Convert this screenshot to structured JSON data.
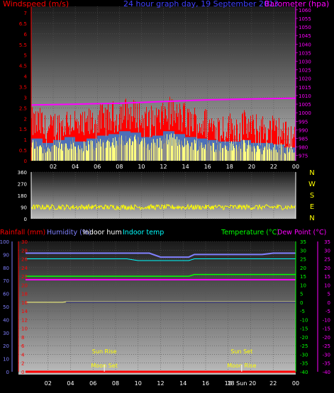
{
  "chart_data": [
    {
      "type": "line",
      "title": "24 hour graph day, 19 September 2013",
      "left_axis_label": "Windspeed (m/s)",
      "right_axis_label": "Barometer (hpa)",
      "x_ticks": [
        "02",
        "04",
        "06",
        "08",
        "10",
        "12",
        "14",
        "16",
        "18",
        "20",
        "22",
        "00"
      ],
      "left_ticks": [
        "0",
        "0.5",
        "1",
        "1.5",
        "2",
        "2.5",
        "3",
        "3.5",
        "4",
        "4.5",
        "5",
        "5.5",
        "6",
        "6.5",
        "7"
      ],
      "right_ticks": [
        "975",
        "980",
        "985",
        "990",
        "995",
        "1000",
        "1005",
        "1010",
        "1015",
        "1020",
        "1025",
        "1030",
        "1035",
        "1040",
        "1045",
        "1050",
        "1055",
        "1060"
      ],
      "ylim_left": [
        0,
        7
      ],
      "ylim_right": [
        972,
        1062
      ],
      "series": [
        {
          "name": "Windspeed",
          "color": "#ff0000",
          "description_values": [
            1.5,
            1.2,
            1.4,
            1.6,
            1.3,
            1.5,
            1.7,
            1.8,
            2.0,
            1.9,
            1.6,
            1.7,
            2.0,
            1.8,
            1.6,
            1.5,
            1.4,
            1.3,
            1.3,
            1.4,
            1.2,
            1.2,
            1.1,
            0.9
          ]
        },
        {
          "name": "Barometer",
          "color": "#ff00ff",
          "x": [
            0,
            4,
            8,
            12,
            16,
            20,
            24
          ],
          "values": [
            1004.5,
            1005,
            1005.5,
            1006.5,
            1007.5,
            1008,
            1008.5
          ]
        }
      ],
      "grid": true
    },
    {
      "type": "line",
      "left_ticks": [
        "0",
        "90",
        "180",
        "270",
        "360"
      ],
      "compass_labels": [
        "N",
        "W",
        "S",
        "E",
        "N"
      ],
      "ylim": [
        0,
        360
      ],
      "series": [
        {
          "name": "Wind direction",
          "color": "#ffff00",
          "mean": 90
        }
      ],
      "grid": true
    },
    {
      "type": "line",
      "legend": [
        "Rainfall (mm)",
        "Humidity (%)",
        "Indoor hum",
        "Indoor temp",
        "Temperature (°C)",
        "Dew Point (°C)"
      ],
      "rain_ticks": [
        "0",
        "10",
        "20",
        "30",
        "40",
        "50",
        "60",
        "70",
        "80",
        "90",
        "100"
      ],
      "hum_ticks": [
        "0",
        "2",
        "4",
        "6",
        "8",
        "10",
        "12",
        "14",
        "16",
        "18",
        "20",
        "22",
        "24",
        "26",
        "28",
        "30"
      ],
      "temp_ticks": [
        "-40",
        "-35",
        "-30",
        "-25",
        "-20",
        "-15",
        "-10",
        "-5",
        "0",
        "5",
        "10",
        "15",
        "20",
        "25",
        "30",
        "35"
      ],
      "x_ticks": [
        "02",
        "04",
        "06",
        "08",
        "10",
        "12",
        "14",
        "16",
        "18",
        "20",
        "22",
        "00"
      ],
      "annotations": [
        {
          "text": "Sun Rise",
          "hour": 7.0
        },
        {
          "text": "Moon Set",
          "hour": 7.0
        },
        {
          "text": "Sun Set",
          "hour": 19.2
        },
        {
          "text": "Moon Rise",
          "hour": 19.2
        },
        {
          "text": "18 Sun 20",
          "hour": 19.2
        }
      ],
      "series": [
        {
          "name": "Humidity",
          "color": "#8080ff",
          "x": [
            0,
            11,
            12,
            14.5,
            15,
            21,
            22,
            24
          ],
          "values": [
            91,
            91,
            88,
            88,
            90,
            90,
            91,
            91
          ]
        },
        {
          "name": "Indoor hum",
          "color": "#ffffff",
          "x": [
            0,
            24
          ],
          "values": [
            87,
            87
          ]
        },
        {
          "name": "Indoor temp",
          "color": "#00ffff",
          "x": [
            0,
            9,
            10,
            14.5,
            15,
            24
          ],
          "values": [
            25,
            25,
            24,
            24,
            25,
            25
          ]
        },
        {
          "name": "Temperature",
          "color": "#00ff00",
          "x": [
            0,
            14.5,
            15,
            24
          ],
          "values": [
            15,
            15,
            16,
            16
          ]
        },
        {
          "name": "Dew Point",
          "color": "#ff00ff",
          "x": [
            0,
            24
          ],
          "values": [
            13,
            13
          ]
        },
        {
          "name": "Rainfall",
          "color": "#ffffff",
          "x": [
            0,
            24
          ],
          "values": [
            0,
            0
          ]
        },
        {
          "name": "Temperature2",
          "color": "#ffffff",
          "x": [
            0,
            3.3,
            3.6,
            24
          ],
          "values": [
            0,
            0,
            0.3,
            0.3
          ]
        }
      ],
      "grid": true
    }
  ]
}
